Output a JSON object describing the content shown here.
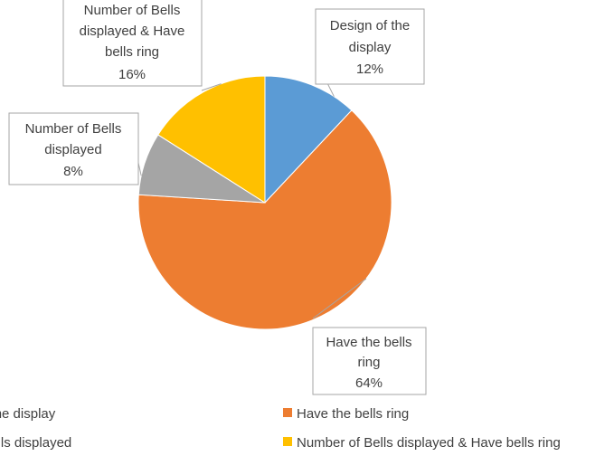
{
  "chart_data": {
    "type": "pie",
    "title": "",
    "slices": [
      {
        "label": "Design of the display",
        "callout_lines": [
          "Design of the",
          "display"
        ],
        "value": 12,
        "value_label": "12%",
        "color": "#5B9BD5"
      },
      {
        "label": "Have the bells ring",
        "callout_lines": [
          "Have the bells",
          "ring"
        ],
        "value": 64,
        "value_label": "64%",
        "color": "#ED7D31"
      },
      {
        "label": "Number of Bells displayed",
        "callout_lines": [
          "Number of Bells",
          "displayed"
        ],
        "value": 8,
        "value_label": "8%",
        "color": "#A5A5A5"
      },
      {
        "label": "Number of Bells displayed & Have bells ring",
        "callout_lines": [
          "Number of Bells",
          "displayed & Have",
          "bells ring"
        ],
        "value": 16,
        "value_label": "16%",
        "color": "#FFC000"
      }
    ],
    "legend": {
      "placement": "bottom",
      "entries": [
        "Design of the display",
        "Have the bells ring",
        "Number of Bells displayed",
        "Number of Bells displayed & Have bells ring"
      ]
    }
  }
}
